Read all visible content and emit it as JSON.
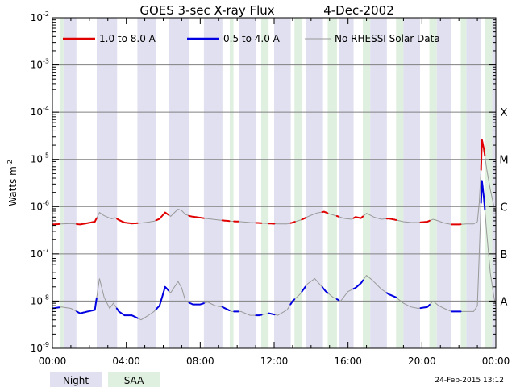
{
  "chart_data": {
    "type": "line",
    "title": "GOES 3-sec X-ray Flux",
    "date": "4-Dec-2002",
    "ylabel": "Watts m",
    "ylabel_sup": "-2",
    "yscale": "log",
    "ylim": [
      1e-09,
      0.01
    ],
    "ytick_exponents": [
      -9,
      -8,
      -7,
      -6,
      -5,
      -4,
      -3,
      -2
    ],
    "ytick_base": "10",
    "xlim": [
      0,
      24
    ],
    "xtick_values": [
      0,
      4,
      8,
      12,
      16,
      20,
      24
    ],
    "xtick_labels": [
      "00:00",
      "04:00",
      "08:00",
      "12:00",
      "16:00",
      "20:00",
      "00:00"
    ],
    "flare_classes": [
      {
        "label": "A",
        "value": 1e-08
      },
      {
        "label": "B",
        "value": 1e-07
      },
      {
        "label": "C",
        "value": 1e-06
      },
      {
        "label": "M",
        "value": 1e-05
      },
      {
        "label": "X",
        "value": 0.0001
      }
    ],
    "legend": {
      "placement": "top-left",
      "entries": [
        {
          "label": "1.0 to 8.0 A",
          "color": "#e00000"
        },
        {
          "label": "0.5 to 4.0 A",
          "color": "#0000e0"
        },
        {
          "label": "No RHESSI Solar Data",
          "color": "#999999"
        }
      ]
    },
    "night_color": "#e0e0f0",
    "saa_color": "#e0f0e0",
    "night_intervals": [
      [
        0.6,
        1.3
      ],
      [
        2.4,
        3.5
      ],
      [
        4.6,
        5.6
      ],
      [
        6.3,
        7.4
      ],
      [
        8.2,
        9.2
      ],
      [
        10.1,
        11.0
      ],
      [
        12.0,
        12.9
      ],
      [
        13.7,
        14.6
      ],
      [
        15.5,
        16.3
      ],
      [
        17.2,
        18.1
      ],
      [
        19.0,
        19.9
      ],
      [
        20.8,
        21.6
      ],
      [
        22.4,
        23.2
      ],
      [
        23.8,
        24.0
      ]
    ],
    "saa_intervals": [
      [
        0.4,
        0.6
      ],
      [
        9.6,
        9.8
      ],
      [
        11.3,
        11.7
      ],
      [
        13.1,
        13.5
      ],
      [
        14.9,
        15.4
      ],
      [
        16.8,
        17.2
      ],
      [
        18.6,
        19.0
      ],
      [
        20.4,
        20.8
      ],
      [
        22.1,
        22.4
      ],
      [
        23.4,
        23.8
      ]
    ],
    "series": [
      {
        "name": "1.0 to 8.0 A",
        "color": "#e00000",
        "x": [
          0.0,
          0.5,
          1.0,
          1.5,
          1.8,
          2.3,
          2.55,
          2.8,
          3.2,
          3.4,
          3.6,
          3.9,
          4.3,
          4.8,
          5.2,
          5.5,
          5.8,
          6.1,
          6.4,
          6.8,
          7.0,
          7.2,
          7.5,
          7.9,
          8.3,
          8.8,
          9.2,
          9.7,
          10.2,
          10.7,
          11.2,
          11.7,
          12.2,
          12.7,
          13.0,
          13.5,
          13.9,
          14.3,
          14.7,
          15.0,
          15.4,
          15.8,
          16.2,
          16.4,
          16.7,
          17.0,
          17.4,
          17.8,
          18.2,
          18.6,
          19.0,
          19.4,
          19.8,
          20.3,
          20.6,
          20.8,
          21.2,
          21.6,
          22.0,
          22.4,
          22.8,
          23.0,
          23.1,
          23.2,
          23.25,
          23.35,
          23.5,
          23.7,
          23.9,
          24.0
        ],
        "y": [
          4.2e-07,
          4.3e-07,
          4.4e-07,
          4.2e-07,
          4.4e-07,
          4.8e-07,
          7.5e-07,
          6.4e-07,
          5.5e-07,
          5.8e-07,
          5.2e-07,
          4.6e-07,
          4.4e-07,
          4.5e-07,
          4.7e-07,
          4.9e-07,
          5.5e-07,
          7.5e-07,
          6.2e-07,
          8.8e-07,
          8.2e-07,
          6.8e-07,
          6.2e-07,
          5.9e-07,
          5.6e-07,
          5.3e-07,
          5.1e-07,
          4.9e-07,
          4.8e-07,
          4.6e-07,
          4.5e-07,
          4.4e-07,
          4.3e-07,
          4.3e-07,
          4.6e-07,
          5.3e-07,
          6.3e-07,
          7.3e-07,
          7.8e-07,
          7e-07,
          6.3e-07,
          5.6e-07,
          5.4e-07,
          6e-07,
          5.7e-07,
          7.2e-07,
          6e-07,
          5.4e-07,
          5.6e-07,
          5.2e-07,
          4.8e-07,
          4.6e-07,
          4.6e-07,
          4.8e-07,
          5.4e-07,
          5.1e-07,
          4.5e-07,
          4.2e-07,
          4.2e-07,
          4.3e-07,
          4.3e-07,
          4.8e-07,
          1.2e-06,
          6e-06,
          2.6e-05,
          1.7e-05,
          6.5e-06,
          2.3e-06,
          1e-06,
          7.5e-07
        ]
      },
      {
        "name": "0.5 to 4.0 A",
        "color": "#0000e0",
        "x": [
          0.0,
          0.5,
          1.0,
          1.5,
          1.9,
          2.3,
          2.55,
          2.8,
          3.1,
          3.3,
          3.6,
          3.9,
          4.3,
          4.8,
          5.2,
          5.5,
          5.8,
          6.1,
          6.4,
          6.8,
          7.0,
          7.2,
          7.6,
          8.0,
          8.4,
          8.8,
          9.2,
          9.7,
          10.2,
          10.7,
          11.2,
          11.7,
          12.2,
          12.7,
          13.0,
          13.4,
          13.8,
          14.2,
          14.5,
          14.8,
          15.2,
          15.6,
          16.0,
          16.4,
          16.7,
          17.0,
          17.3,
          17.8,
          18.2,
          18.6,
          19.0,
          19.4,
          19.8,
          20.3,
          20.6,
          20.9,
          21.2,
          21.6,
          22.0,
          22.4,
          22.8,
          23.0,
          23.1,
          23.2,
          23.25,
          23.35,
          23.5,
          23.7,
          23.9,
          24.0
        ],
        "y": [
          7e-09,
          7.5e-09,
          7e-09,
          5.5e-09,
          6e-09,
          6.5e-09,
          3e-08,
          1.2e-08,
          7e-09,
          9e-09,
          6e-09,
          5e-09,
          5e-09,
          4e-09,
          5e-09,
          6e-09,
          8e-09,
          2e-08,
          1.5e-08,
          2.6e-08,
          1.9e-08,
          1e-08,
          8.5e-09,
          8.5e-09,
          9.5e-09,
          8e-09,
          7.5e-09,
          6e-09,
          6e-09,
          5e-09,
          5e-09,
          5.5e-09,
          5e-09,
          6.5e-09,
          1e-08,
          1.4e-08,
          2.3e-08,
          3e-08,
          2.2e-08,
          1.6e-08,
          1.2e-08,
          1e-08,
          1.6e-08,
          1.9e-08,
          2.4e-08,
          3.5e-08,
          2.8e-08,
          1.8e-08,
          1.4e-08,
          1.2e-08,
          9e-09,
          7.5e-09,
          7e-09,
          7.5e-09,
          1e-08,
          8e-09,
          7e-09,
          6e-09,
          6e-09,
          6e-09,
          6e-09,
          8e-09,
          1e-07,
          1.2e-06,
          3.5e-06,
          1.6e-06,
          3e-07,
          4e-08,
          1.2e-08,
          8e-09
        ]
      }
    ],
    "bottom_legend": [
      {
        "label": "Night",
        "color": "#e0e0f0"
      },
      {
        "label": "SAA",
        "color": "#e0f0e0"
      }
    ],
    "timestamp": "24-Feb-2015 13:12"
  }
}
